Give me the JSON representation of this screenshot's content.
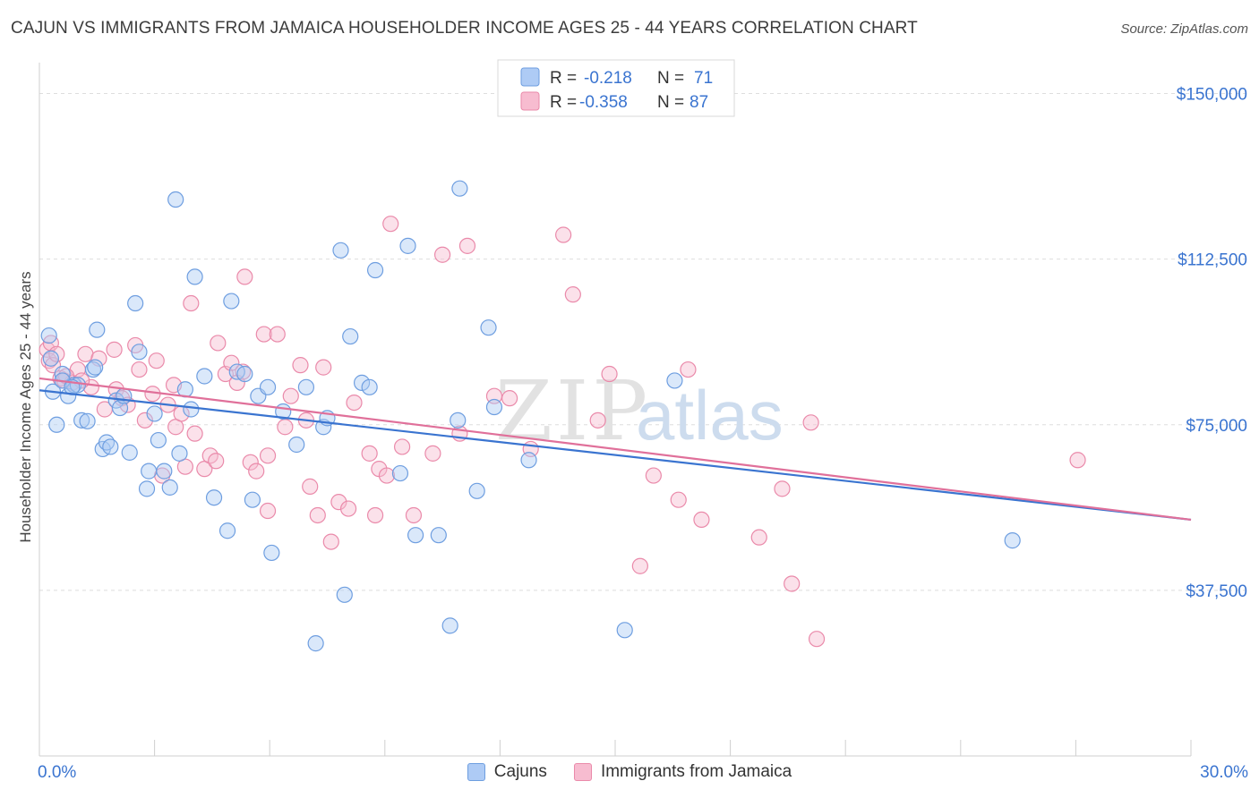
{
  "header": {
    "title": "CAJUN VS IMMIGRANTS FROM JAMAICA HOUSEHOLDER INCOME AGES 25 - 44 YEARS CORRELATION CHART",
    "source": "Source: ZipAtlas.com"
  },
  "watermark": {
    "zip": "ZIP",
    "atlas": "atlas"
  },
  "legend": {
    "rows": [
      {
        "r_label": "R =",
        "r_value": "-0.218",
        "n_label": "N =",
        "n_value": "71"
      },
      {
        "r_label": "R =",
        "r_value": "-0.358",
        "n_label": "N =",
        "n_value": "87"
      }
    ]
  },
  "chart_data": {
    "type": "scatter",
    "title": "CAJUN VS IMMIGRANTS FROM JAMAICA HOUSEHOLDER INCOME AGES 25 - 44 YEARS CORRELATION CHART",
    "xlabel": "",
    "ylabel": "Householder Income Ages 25 - 44 years",
    "xlim": [
      0,
      30
    ],
    "ylim": [
      0,
      157000
    ],
    "x_tick_labels": [
      "0.0%",
      "30.0%"
    ],
    "y_ticks": [
      37500,
      75000,
      112500,
      150000
    ],
    "y_tick_labels": [
      "$37,500",
      "$75,000",
      "$112,500",
      "$150,000"
    ],
    "grid": true,
    "legend_position": "top-center",
    "colors": {
      "Cajuns": {
        "fill": "#aecbf5",
        "stroke": "#6e9ee0",
        "line": "#3a74d0"
      },
      "Immigrants from Jamaica": {
        "fill": "#f7bcd0",
        "stroke": "#ea8aaa",
        "line": "#e0709a"
      },
      "axis_text": "#3a74d0"
    },
    "series": [
      {
        "name": "Cajuns",
        "r": -0.218,
        "n": 71,
        "trend": {
          "x": [
            0,
            30
          ],
          "y": [
            82800,
            53500
          ]
        },
        "points": [
          [
            0.25,
            95200
          ],
          [
            0.3,
            90000
          ],
          [
            0.35,
            82500
          ],
          [
            0.45,
            75000
          ],
          [
            0.6,
            86500
          ],
          [
            0.75,
            81500
          ],
          [
            0.9,
            84000
          ],
          [
            1.0,
            84000
          ],
          [
            1.1,
            76000
          ],
          [
            1.25,
            75800
          ],
          [
            1.4,
            87500
          ],
          [
            1.5,
            96500
          ],
          [
            1.65,
            69500
          ],
          [
            1.75,
            71000
          ],
          [
            1.85,
            70000
          ],
          [
            2.0,
            80500
          ],
          [
            2.1,
            78800
          ],
          [
            2.2,
            81500
          ],
          [
            2.35,
            68700
          ],
          [
            2.5,
            102500
          ],
          [
            2.6,
            91500
          ],
          [
            2.8,
            60500
          ],
          [
            2.85,
            64500
          ],
          [
            3.0,
            77500
          ],
          [
            3.1,
            71500
          ],
          [
            3.25,
            64500
          ],
          [
            3.4,
            60800
          ],
          [
            3.55,
            126000
          ],
          [
            3.65,
            68500
          ],
          [
            3.8,
            83000
          ],
          [
            3.95,
            78500
          ],
          [
            4.05,
            108500
          ],
          [
            4.3,
            86000
          ],
          [
            4.55,
            58500
          ],
          [
            4.9,
            51000
          ],
          [
            5.0,
            103000
          ],
          [
            5.15,
            87000
          ],
          [
            5.35,
            86500
          ],
          [
            5.55,
            58000
          ],
          [
            5.7,
            81500
          ],
          [
            5.95,
            83500
          ],
          [
            6.05,
            46000
          ],
          [
            6.35,
            78000
          ],
          [
            6.7,
            70500
          ],
          [
            6.95,
            83500
          ],
          [
            7.2,
            25500
          ],
          [
            7.4,
            74500
          ],
          [
            7.5,
            76500
          ],
          [
            7.85,
            114500
          ],
          [
            7.95,
            36500
          ],
          [
            8.1,
            95000
          ],
          [
            8.4,
            84500
          ],
          [
            8.6,
            83500
          ],
          [
            8.75,
            110000
          ],
          [
            9.4,
            64000
          ],
          [
            9.6,
            115500
          ],
          [
            9.8,
            50000
          ],
          [
            10.4,
            50000
          ],
          [
            10.7,
            29500
          ],
          [
            10.95,
            128500
          ],
          [
            10.9,
            76000
          ],
          [
            11.4,
            60000
          ],
          [
            11.7,
            97000
          ],
          [
            11.85,
            79000
          ],
          [
            12.75,
            67000
          ],
          [
            15.25,
            28500
          ],
          [
            16.55,
            85000
          ],
          [
            25.35,
            48800
          ],
          [
            0.6,
            85000
          ],
          [
            0.85,
            83500
          ],
          [
            1.45,
            88000
          ]
        ]
      },
      {
        "name": "Immigrants from Jamaica",
        "r": -0.358,
        "n": 87,
        "trend": {
          "x": [
            0,
            30
          ],
          "y": [
            85500,
            53500
          ]
        },
        "points": [
          [
            0.2,
            92000
          ],
          [
            0.25,
            89500
          ],
          [
            0.3,
            93500
          ],
          [
            0.35,
            88500
          ],
          [
            0.45,
            91000
          ],
          [
            0.55,
            85500
          ],
          [
            0.65,
            85000
          ],
          [
            0.85,
            84500
          ],
          [
            1.0,
            87500
          ],
          [
            1.2,
            91000
          ],
          [
            1.35,
            83500
          ],
          [
            1.55,
            90000
          ],
          [
            1.7,
            78500
          ],
          [
            1.95,
            92000
          ],
          [
            2.0,
            83000
          ],
          [
            2.15,
            81000
          ],
          [
            2.3,
            79500
          ],
          [
            2.5,
            93000
          ],
          [
            2.6,
            87500
          ],
          [
            2.75,
            76000
          ],
          [
            2.95,
            82000
          ],
          [
            3.05,
            89500
          ],
          [
            3.2,
            63500
          ],
          [
            3.35,
            79500
          ],
          [
            3.5,
            84000
          ],
          [
            3.55,
            74500
          ],
          [
            3.7,
            77500
          ],
          [
            3.8,
            65500
          ],
          [
            3.95,
            102500
          ],
          [
            4.05,
            73000
          ],
          [
            4.3,
            65000
          ],
          [
            4.45,
            68000
          ],
          [
            4.6,
            66800
          ],
          [
            4.65,
            93500
          ],
          [
            4.85,
            86500
          ],
          [
            5.0,
            89000
          ],
          [
            5.15,
            84500
          ],
          [
            5.35,
            108500
          ],
          [
            5.5,
            66500
          ],
          [
            5.65,
            64500
          ],
          [
            5.85,
            95500
          ],
          [
            5.95,
            55500
          ],
          [
            5.95,
            68000
          ],
          [
            6.2,
            95500
          ],
          [
            6.4,
            74500
          ],
          [
            6.55,
            81500
          ],
          [
            6.8,
            88500
          ],
          [
            6.95,
            76000
          ],
          [
            7.05,
            61000
          ],
          [
            7.25,
            54500
          ],
          [
            7.4,
            88000
          ],
          [
            7.6,
            48500
          ],
          [
            7.8,
            57500
          ],
          [
            8.05,
            56000
          ],
          [
            8.2,
            80000
          ],
          [
            8.6,
            68500
          ],
          [
            8.75,
            54500
          ],
          [
            8.85,
            65000
          ],
          [
            9.05,
            63500
          ],
          [
            9.15,
            120500
          ],
          [
            9.45,
            70000
          ],
          [
            9.75,
            54500
          ],
          [
            10.25,
            68500
          ],
          [
            10.5,
            113500
          ],
          [
            10.95,
            73000
          ],
          [
            11.15,
            115500
          ],
          [
            11.85,
            81500
          ],
          [
            12.25,
            81000
          ],
          [
            12.8,
            69500
          ],
          [
            13.65,
            118000
          ],
          [
            13.9,
            104500
          ],
          [
            14.55,
            76000
          ],
          [
            14.85,
            86500
          ],
          [
            15.65,
            43000
          ],
          [
            16.0,
            63500
          ],
          [
            16.65,
            58000
          ],
          [
            16.9,
            87500
          ],
          [
            17.25,
            53500
          ],
          [
            18.75,
            49500
          ],
          [
            19.35,
            60500
          ],
          [
            19.6,
            39000
          ],
          [
            20.1,
            75500
          ],
          [
            20.25,
            26500
          ],
          [
            27.05,
            67000
          ],
          [
            0.7,
            86000
          ],
          [
            1.1,
            85000
          ],
          [
            5.3,
            87000
          ]
        ]
      }
    ]
  },
  "bottom_legend": {
    "items": [
      {
        "label": "Cajuns"
      },
      {
        "label": "Immigrants from Jamaica"
      }
    ]
  }
}
